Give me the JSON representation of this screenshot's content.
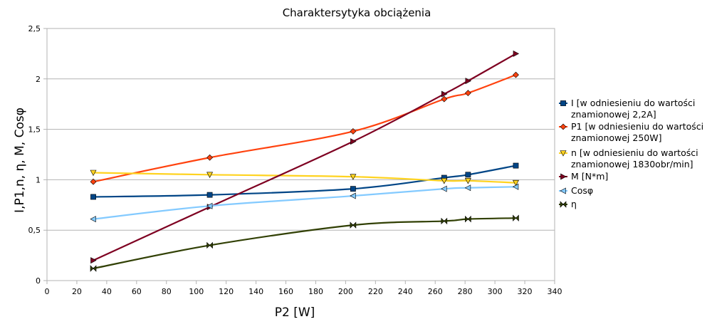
{
  "chart_data": {
    "type": "line",
    "title": "Charaktersytyka obciążenia",
    "xlabel": "P2 [W]",
    "ylabel": "I,P1,n, η, M, Cosφ",
    "xlim": [
      0,
      340
    ],
    "ylim": [
      0,
      2.5
    ],
    "x_ticks": [
      "0",
      "20",
      "40",
      "60",
      "80",
      "100",
      "120",
      "140",
      "160",
      "180",
      "200",
      "220",
      "240",
      "260",
      "280",
      "300",
      "320",
      "340"
    ],
    "y_ticks": [
      "0",
      "0,5",
      "1",
      "1,5",
      "2",
      "2,5"
    ],
    "grid": "horizontal",
    "legend_position": "right",
    "series": [
      {
        "name_lines": [
          "I [w odniesieniu do wartości",
          "znamionowej 2,2A]"
        ],
        "marker": "square",
        "color": "#004586",
        "points": [
          [
            31,
            0.83
          ],
          [
            109,
            0.85
          ],
          [
            205,
            0.91
          ],
          [
            266,
            1.02
          ],
          [
            282,
            1.05
          ],
          [
            314,
            1.14
          ]
        ]
      },
      {
        "name_lines": [
          "P1 [w odniesieniu do wartości",
          "znamionowej 250W]"
        ],
        "marker": "diamond",
        "color": "#ff420e",
        "points": [
          [
            31,
            0.98
          ],
          [
            109,
            1.22
          ],
          [
            205,
            1.48
          ],
          [
            266,
            1.8
          ],
          [
            282,
            1.86
          ],
          [
            314,
            2.04
          ]
        ]
      },
      {
        "name_lines": [
          "n [w odniesieniu do wartości",
          "znamionowej 1830obr/min]"
        ],
        "marker": "triangle-down",
        "color": "#ffd320",
        "points": [
          [
            31,
            1.07
          ],
          [
            109,
            1.05
          ],
          [
            205,
            1.03
          ],
          [
            266,
            0.99
          ],
          [
            282,
            0.99
          ],
          [
            314,
            0.97
          ]
        ]
      },
      {
        "name_lines": [
          "M [N*m]"
        ],
        "marker": "triangle-right",
        "color": "#7e0021",
        "points": [
          [
            31,
            0.2
          ],
          [
            109,
            0.73
          ],
          [
            205,
            1.38
          ],
          [
            266,
            1.85
          ],
          [
            282,
            1.98
          ],
          [
            314,
            2.25
          ]
        ]
      },
      {
        "name_lines": [
          "Cosφ"
        ],
        "marker": "triangle-left",
        "color": "#83caff",
        "points": [
          [
            31,
            0.61
          ],
          [
            109,
            0.74
          ],
          [
            205,
            0.84
          ],
          [
            266,
            0.91
          ],
          [
            282,
            0.92
          ],
          [
            314,
            0.93
          ]
        ]
      },
      {
        "name_lines": [
          "η"
        ],
        "marker": "bowtie",
        "color": "#314004",
        "points": [
          [
            31,
            0.12
          ],
          [
            109,
            0.35
          ],
          [
            205,
            0.55
          ],
          [
            266,
            0.59
          ],
          [
            282,
            0.61
          ],
          [
            314,
            0.62
          ]
        ]
      }
    ]
  }
}
